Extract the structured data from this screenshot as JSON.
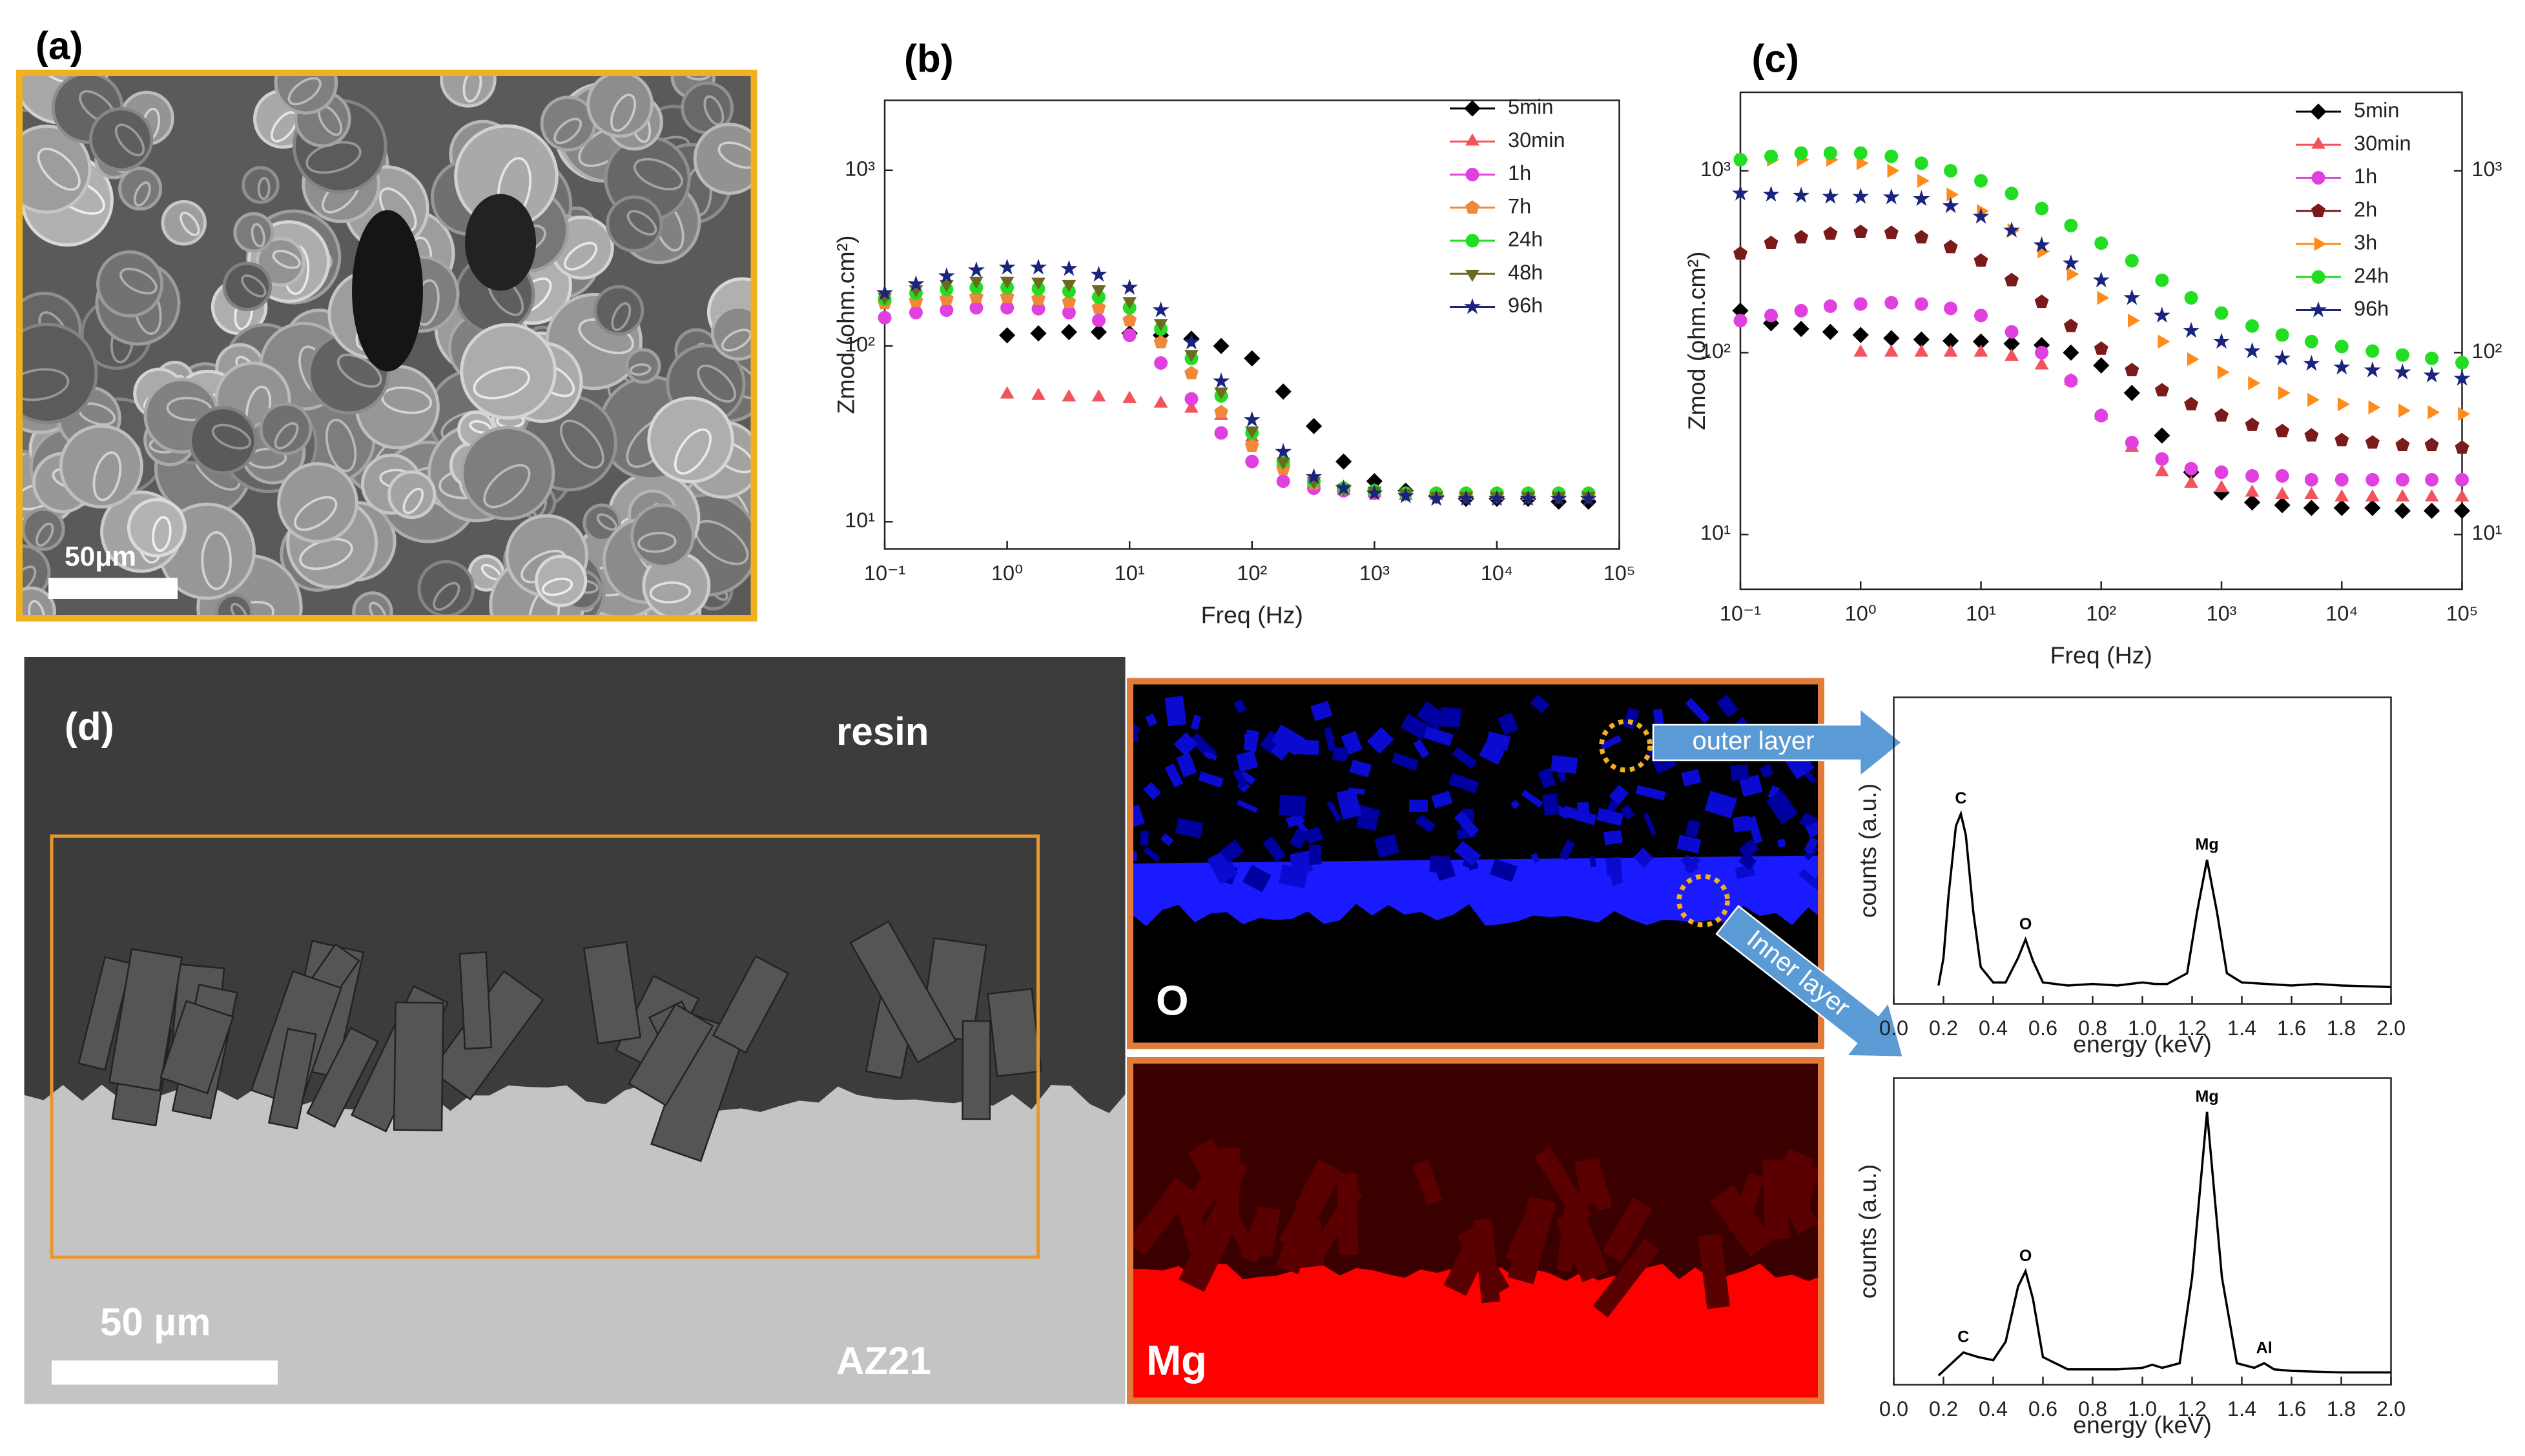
{
  "figure": {
    "panel_a": "(a)",
    "scale_a": "50μm",
    "panel_d": "(d)",
    "resin": "resin",
    "substrate": "AZ21",
    "scale_d": "50 µm",
    "map_o": "O",
    "map_mg": "Mg",
    "outer": "outer layer",
    "inner": "Inner layer"
  },
  "chart_data": [
    {
      "type": "scatter",
      "title": "(b)",
      "xlabel": "Freq (Hz)",
      "ylabel": "Zmod (ohm.cm²)",
      "xscale": "log",
      "yscale": "log",
      "xlim": [
        0.1,
        100000
      ],
      "ylim": [
        7,
        2500
      ],
      "legend": "upper right",
      "xticks": [
        {
          "value": 0.1,
          "label": "10⁻¹"
        },
        {
          "value": 1,
          "label": "10⁰"
        },
        {
          "value": 10,
          "label": "10¹"
        },
        {
          "value": 100,
          "label": "10²"
        },
        {
          "value": 1000,
          "label": "10³"
        },
        {
          "value": 10000,
          "label": "10⁴"
        },
        {
          "value": 100000,
          "label": "10⁵"
        }
      ],
      "yticks": [
        {
          "value": 10,
          "label": "10¹"
        },
        {
          "value": 100,
          "label": "10²"
        },
        {
          "value": 1000,
          "label": "10³"
        }
      ],
      "x": [
        0.1,
        0.18,
        0.32,
        0.56,
        1,
        1.8,
        3.2,
        5.6,
        10,
        18,
        32,
        56,
        100,
        180,
        320,
        560,
        1000,
        1800,
        3200,
        5600,
        10000,
        18000,
        32000,
        56000
      ],
      "series": [
        {
          "name": "5min",
          "color": "#000000",
          "marker": "diamond",
          "values": [
            null,
            null,
            null,
            null,
            115,
            118,
            120,
            120,
            118,
            115,
            110,
            100,
            85,
            55,
            35,
            22,
            17,
            15,
            14,
            13.5,
            13.5,
            13.5,
            13,
            13
          ]
        },
        {
          "name": "30min",
          "color": "#f2545b",
          "marker": "triangle-up",
          "values": [
            null,
            null,
            null,
            null,
            53,
            52,
            51,
            51,
            50,
            47,
            44,
            40,
            30,
            22,
            17,
            15,
            14.5,
            14,
            14,
            14,
            14,
            14,
            14,
            14
          ]
        },
        {
          "name": "1h",
          "color": "#e040e0",
          "marker": "circle",
          "values": [
            145,
            155,
            160,
            165,
            165,
            163,
            155,
            140,
            115,
            80,
            50,
            32,
            22,
            17,
            15.5,
            15,
            14.5,
            14.5,
            14.5,
            14.5,
            14.5,
            14.5,
            14.5,
            14.5
          ]
        },
        {
          "name": "7h",
          "color": "#f0883a",
          "marker": "pentagon",
          "values": [
            175,
            180,
            185,
            190,
            190,
            185,
            178,
            165,
            140,
            105,
            70,
            42,
            27,
            20,
            16.5,
            15.5,
            15,
            14.5,
            14.5,
            14.5,
            14.5,
            14.5,
            14.5,
            14.5
          ]
        },
        {
          "name": "24h",
          "color": "#22dd22",
          "marker": "circle",
          "values": [
            185,
            200,
            210,
            215,
            215,
            212,
            205,
            190,
            165,
            125,
            85,
            52,
            32,
            22,
            17,
            15.5,
            15,
            14.5,
            14.5,
            14.5,
            14.5,
            14.5,
            14.5,
            14.5
          ]
        },
        {
          "name": "48h",
          "color": "#6b6b1f",
          "marker": "triangle-down",
          "values": [
            190,
            210,
            225,
            235,
            235,
            232,
            225,
            210,
            180,
            135,
            90,
            55,
            33,
            22,
            17,
            15.5,
            15,
            14.5,
            14,
            14,
            14,
            14,
            14,
            14
          ]
        },
        {
          "name": "96h",
          "color": "#1a237e",
          "marker": "star",
          "values": [
            200,
            225,
            250,
            270,
            280,
            280,
            275,
            255,
            215,
            160,
            105,
            63,
            38,
            25,
            18,
            15.5,
            14.5,
            14,
            13.5,
            13.5,
            13.5,
            13.5,
            13.5,
            13.5
          ]
        }
      ]
    },
    {
      "type": "scatter",
      "title": "(c)",
      "xlabel": "Freq (Hz)",
      "ylabel": "Zmod (ohm.cm²)",
      "xscale": "log",
      "yscale": "log",
      "xlim": [
        0.1,
        100000
      ],
      "ylim": [
        5,
        2700
      ],
      "y2lim": [
        5,
        2700
      ],
      "legend": "upper right",
      "xticks": [
        {
          "value": 0.1,
          "label": "10⁻¹"
        },
        {
          "value": 1,
          "label": "10⁰"
        },
        {
          "value": 10,
          "label": "10¹"
        },
        {
          "value": 100,
          "label": "10²"
        },
        {
          "value": 1000,
          "label": "10³"
        },
        {
          "value": 10000,
          "label": "10⁴"
        },
        {
          "value": 100000,
          "label": "10⁵"
        }
      ],
      "yticks": [
        {
          "value": 10,
          "label": "10¹"
        },
        {
          "value": 100,
          "label": "10²"
        },
        {
          "value": 1000,
          "label": "10³"
        }
      ],
      "y2ticks": [
        {
          "value": 10,
          "label": "10¹"
        },
        {
          "value": 100,
          "label": "10²"
        },
        {
          "value": 1000,
          "label": "10³"
        }
      ],
      "x": [
        0.1,
        0.18,
        0.32,
        0.56,
        1,
        1.8,
        3.2,
        5.6,
        10,
        18,
        32,
        56,
        100,
        180,
        320,
        560,
        1000,
        1800,
        3200,
        5600,
        10000,
        18000,
        32000,
        56000,
        100000
      ],
      "series": [
        {
          "name": "5min",
          "color": "#000000",
          "marker": "diamond",
          "values": [
            170,
            145,
            135,
            130,
            125,
            120,
            118,
            116,
            115,
            112,
            110,
            100,
            85,
            60,
            35,
            22,
            17,
            15,
            14.5,
            14,
            14,
            14,
            13.5,
            13.5,
            13.5
          ]
        },
        {
          "name": "30min",
          "color": "#f2545b",
          "marker": "triangle-up",
          "values": [
            null,
            null,
            null,
            null,
            100,
            100,
            100,
            100,
            100,
            95,
            85,
            70,
            45,
            30,
            22,
            19,
            18,
            17,
            16.5,
            16.5,
            16,
            16,
            16,
            16,
            16
          ]
        },
        {
          "name": "1h",
          "color": "#e040e0",
          "marker": "circle",
          "values": [
            150,
            160,
            170,
            180,
            185,
            188,
            185,
            175,
            160,
            130,
            100,
            70,
            45,
            32,
            26,
            23,
            22,
            21,
            21,
            20,
            20,
            20,
            20,
            20,
            20
          ]
        },
        {
          "name": "2h",
          "color": "#7a1a1a",
          "marker": "pentagon",
          "values": [
            350,
            400,
            430,
            450,
            460,
            455,
            430,
            380,
            320,
            250,
            190,
            140,
            105,
            80,
            62,
            52,
            45,
            40,
            37,
            35,
            33,
            32,
            31,
            31,
            30
          ]
        },
        {
          "name": "3h",
          "color": "#ff8c1a",
          "marker": "triangle-right",
          "values": [
            1150,
            1150,
            1150,
            1150,
            1100,
            1000,
            880,
            740,
            600,
            470,
            360,
            270,
            200,
            150,
            115,
            92,
            78,
            68,
            60,
            55,
            52,
            50,
            48,
            47,
            46
          ]
        },
        {
          "name": "24h",
          "color": "#22dd22",
          "marker": "circle",
          "values": [
            1150,
            1200,
            1250,
            1250,
            1250,
            1200,
            1100,
            1000,
            880,
            750,
            620,
            500,
            400,
            320,
            250,
            200,
            165,
            140,
            125,
            115,
            108,
            102,
            97,
            93,
            88
          ]
        },
        {
          "name": "96h",
          "color": "#1a237e",
          "marker": "star",
          "values": [
            750,
            740,
            730,
            720,
            720,
            715,
            700,
            640,
            560,
            470,
            390,
            310,
            250,
            200,
            160,
            132,
            115,
            102,
            93,
            87,
            83,
            80,
            78,
            75,
            72
          ]
        }
      ]
    },
    {
      "type": "line",
      "xlabel": "energy (keV)",
      "ylabel": "counts (a.u.)",
      "xlim": [
        0,
        2
      ],
      "ylim": [
        0,
        100
      ],
      "color": "#000000",
      "xticks": [
        {
          "value": 0,
          "label": "0.0"
        },
        0.2,
        0.4,
        0.6,
        0.8,
        {
          "value": 1,
          "label": "1.0"
        },
        1.2,
        1.4,
        1.6,
        1.8,
        {
          "value": 2,
          "label": "2.0"
        }
      ],
      "x": [
        0.18,
        0.2,
        0.22,
        0.25,
        0.27,
        0.29,
        0.32,
        0.35,
        0.4,
        0.45,
        0.5,
        0.53,
        0.56,
        0.6,
        0.7,
        0.8,
        0.9,
        1.0,
        1.05,
        1.1,
        1.18,
        1.22,
        1.26,
        1.3,
        1.34,
        1.4,
        1.5,
        1.6,
        1.7,
        1.8,
        2.0
      ],
      "values": [
        6,
        15,
        35,
        58,
        62,
        55,
        30,
        12,
        7,
        7,
        15,
        21,
        14,
        7,
        6,
        6.5,
        6,
        7,
        6.5,
        6.5,
        10,
        30,
        47,
        30,
        10,
        7,
        6.5,
        6,
        6.5,
        6,
        5.5
      ],
      "annotations": [
        {
          "text": "C",
          "x": 0.27
        },
        {
          "text": "O",
          "x": 0.53
        },
        {
          "text": "Mg",
          "x": 1.26
        }
      ]
    },
    {
      "type": "line",
      "xlabel": "energy (keV)",
      "ylabel": "counts (a.u.)",
      "xlim": [
        0,
        2
      ],
      "ylim": [
        0,
        100
      ],
      "color": "#000000",
      "xticks": [
        {
          "value": 0,
          "label": "0.0"
        },
        0.2,
        0.4,
        0.6,
        0.8,
        {
          "value": 1,
          "label": "1.0"
        },
        1.2,
        1.4,
        1.6,
        1.8,
        {
          "value": 2,
          "label": "2.0"
        }
      ],
      "x": [
        0.18,
        0.22,
        0.28,
        0.34,
        0.4,
        0.45,
        0.5,
        0.53,
        0.56,
        0.6,
        0.7,
        0.8,
        0.9,
        1.0,
        1.04,
        1.08,
        1.15,
        1.2,
        1.26,
        1.32,
        1.38,
        1.45,
        1.49,
        1.53,
        1.6,
        1.8,
        2.0
      ],
      "values": [
        3,
        6,
        10.5,
        9,
        8,
        14,
        32,
        37,
        28,
        9,
        5,
        5,
        5,
        5.5,
        6.5,
        5.5,
        7,
        35,
        89,
        35,
        7,
        5.5,
        7,
        5,
        4.5,
        4,
        4
      ],
      "annotations": [
        {
          "text": "C",
          "x": 0.28
        },
        {
          "text": "O",
          "x": 0.53
        },
        {
          "text": "Mg",
          "x": 1.26
        },
        {
          "text": "Al",
          "x": 1.49
        }
      ]
    }
  ]
}
